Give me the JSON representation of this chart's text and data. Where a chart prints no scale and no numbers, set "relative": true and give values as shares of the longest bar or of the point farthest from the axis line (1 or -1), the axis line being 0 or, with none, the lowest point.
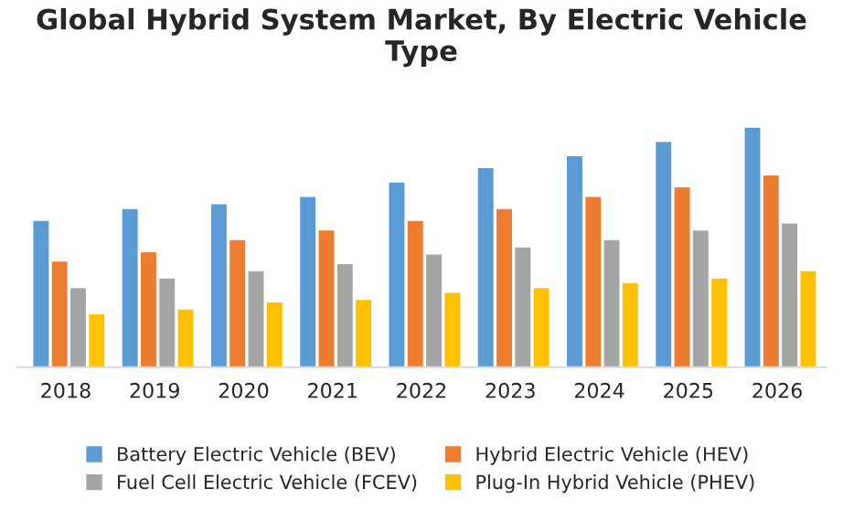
{
  "chart_data": {
    "type": "bar",
    "title": "Global Hybrid System Market, By Electric Vehicle Type",
    "relative": true,
    "legend": "bottom",
    "grid": false,
    "categories": [
      "2018",
      "2019",
      "2020",
      "2021",
      "2022",
      "2023",
      "2024",
      "2025",
      "2026"
    ],
    "series": [
      {
        "name": "Battery Electric Vehicle (BEV)",
        "color": "#5b9bd5",
        "values": [
          0.61,
          0.66,
          0.68,
          0.71,
          0.77,
          0.83,
          0.88,
          0.94,
          1
        ]
      },
      {
        "name": "Hybrid Electric Vehicle (HEV)",
        "color": "#ed7d31",
        "values": [
          0.44,
          0.48,
          0.53,
          0.57,
          0.61,
          0.66,
          0.71,
          0.75,
          0.8
        ]
      },
      {
        "name": "Fuel Cell Electric Vehicle (FCEV)",
        "color": "#a5a5a5",
        "values": [
          0.33,
          0.37,
          0.4,
          0.43,
          0.47,
          0.5,
          0.53,
          0.57,
          0.6
        ]
      },
      {
        "name": "Plug-In Hybrid Vehicle (PHEV)",
        "color": "#ffc000",
        "values": [
          0.22,
          0.24,
          0.27,
          0.28,
          0.31,
          0.33,
          0.35,
          0.37,
          0.4
        ]
      }
    ]
  }
}
